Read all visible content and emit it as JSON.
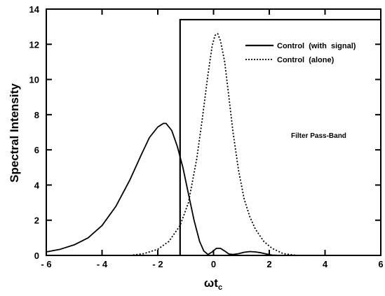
{
  "chart_data": {
    "type": "line",
    "title": "",
    "xlabel": "ωt",
    "xlabel_sub": "c",
    "ylabel": "Spectral Intensity",
    "xlim": [
      -6,
      6
    ],
    "ylim": [
      0,
      14
    ],
    "x_ticks": [
      -6,
      -4,
      -2,
      0,
      2,
      4,
      6
    ],
    "x_tick_labels": [
      "- 6",
      "- 4",
      "- 2",
      "0",
      "2",
      "4",
      "6"
    ],
    "y_ticks": [
      0,
      2,
      4,
      6,
      8,
      10,
      12,
      14
    ],
    "y_tick_labels": [
      "0",
      "2",
      "4",
      "6",
      "8",
      "10",
      "12",
      "14"
    ],
    "grid": false,
    "legend_position": "top-right",
    "series": [
      {
        "name": "Control  (with  signal)",
        "style": "solid",
        "x": [
          -6,
          -5.5,
          -5,
          -4.5,
          -4,
          -3.5,
          -3,
          -2.6,
          -2.3,
          -2.0,
          -1.8,
          -1.7,
          -1.5,
          -1.3,
          -1.1,
          -0.9,
          -0.7,
          -0.5,
          -0.35,
          -0.2,
          -0.05,
          0.1,
          0.25,
          0.4,
          0.55,
          0.7,
          0.9,
          1.1,
          1.3,
          1.5,
          1.7,
          1.9,
          2.1,
          2.4,
          3.0,
          4.0,
          6.0
        ],
        "y": [
          0.2,
          0.35,
          0.6,
          1.0,
          1.7,
          2.8,
          4.3,
          5.7,
          6.7,
          7.3,
          7.5,
          7.5,
          7.1,
          6.2,
          5.0,
          3.5,
          2.0,
          0.8,
          0.25,
          0.05,
          0.2,
          0.4,
          0.4,
          0.25,
          0.08,
          0.05,
          0.1,
          0.18,
          0.22,
          0.2,
          0.15,
          0.08,
          0.02,
          0.0,
          0.0,
          0.0,
          0.0
        ]
      },
      {
        "name": "Control  (alone)",
        "style": "dotted",
        "x": [
          -3.0,
          -2.5,
          -2.0,
          -1.6,
          -1.2,
          -0.9,
          -0.6,
          -0.4,
          -0.2,
          -0.05,
          0.05,
          0.15,
          0.25,
          0.4,
          0.55,
          0.7,
          0.9,
          1.1,
          1.3,
          1.5,
          1.8,
          2.1,
          2.5,
          3.0
        ],
        "y": [
          0.0,
          0.1,
          0.35,
          0.8,
          1.7,
          3.0,
          5.5,
          7.8,
          10.3,
          11.9,
          12.5,
          12.6,
          12.2,
          11.0,
          9.0,
          7.0,
          4.8,
          3.2,
          2.2,
          1.5,
          0.8,
          0.4,
          0.1,
          0.0
        ]
      }
    ],
    "filter": {
      "x_edge": -1.2,
      "level": 13.4
    },
    "annotations": [
      "Filter Pass-Band"
    ]
  }
}
